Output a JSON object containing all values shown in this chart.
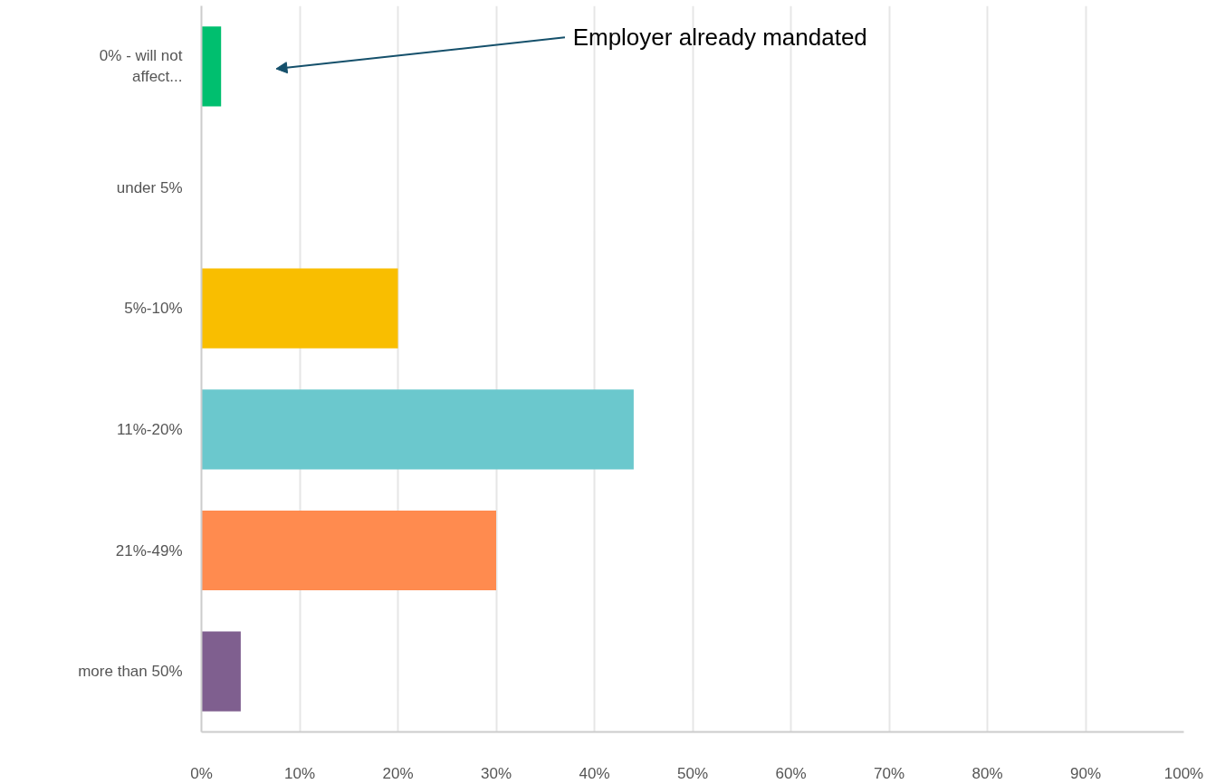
{
  "chart_data": {
    "type": "bar",
    "orientation": "horizontal",
    "categories": [
      "0% - will not\naffect...",
      "under 5%",
      "5%-10%",
      "11%-20%",
      "21%-49%",
      "more than 50%"
    ],
    "values": [
      2,
      0,
      20,
      44,
      30,
      4
    ],
    "colors": [
      "#00bf6f",
      "#f9be00",
      "#f9be00",
      "#6bc8cd",
      "#ff8b4f",
      "#7f5f8f"
    ],
    "xlim": [
      0,
      100
    ],
    "xticks": [
      {
        "value": 0,
        "label": "0%"
      },
      {
        "value": 10,
        "label": "10%"
      },
      {
        "value": 20,
        "label": "20%"
      },
      {
        "value": 30,
        "label": "30%"
      },
      {
        "value": 40,
        "label": "40%"
      },
      {
        "value": 50,
        "label": "50%"
      },
      {
        "value": 60,
        "label": "60%"
      },
      {
        "value": 70,
        "label": "70%"
      },
      {
        "value": 80,
        "label": "80%"
      },
      {
        "value": 90,
        "label": "90%"
      },
      {
        "value": 100,
        "label": "100%"
      }
    ],
    "grid": "x",
    "annotations": [
      "Employer already mandated"
    ]
  }
}
